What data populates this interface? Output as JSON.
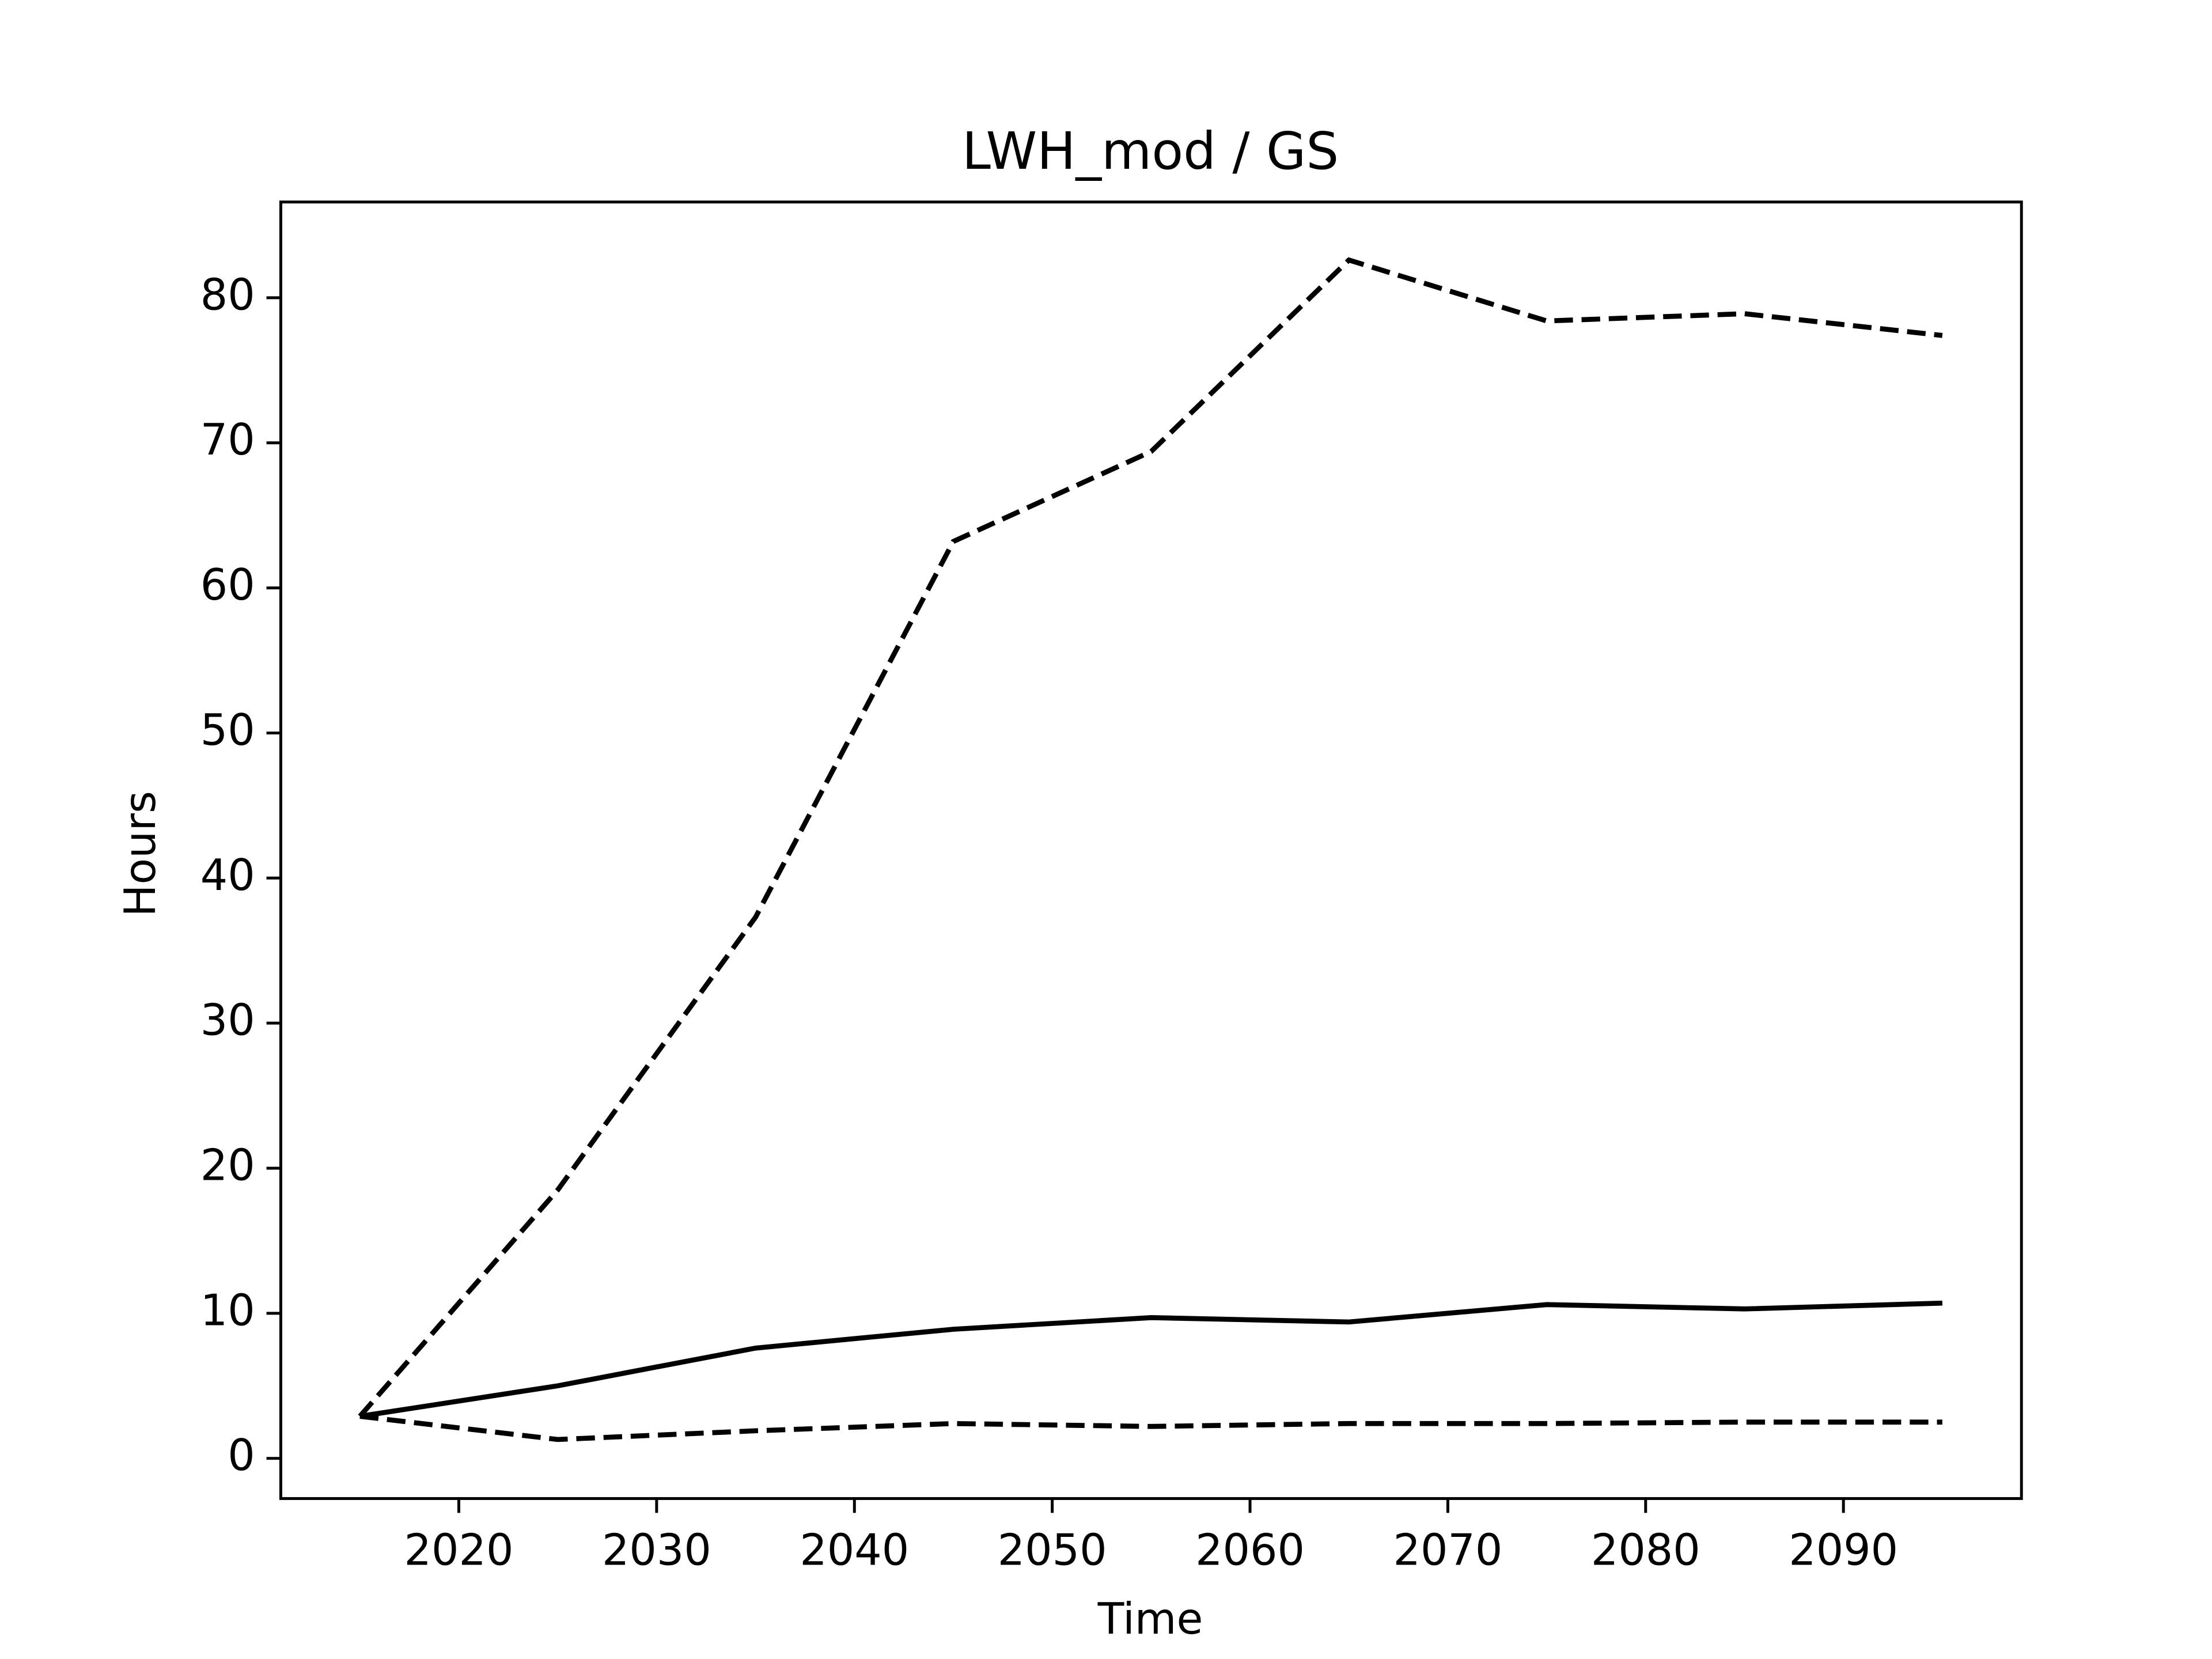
{
  "chart_data": {
    "type": "line",
    "title": "LWH_mod / GS",
    "x_label": "Time",
    "y_label": "Hours",
    "x": [
      2015,
      2025,
      2035,
      2045,
      2055,
      2065,
      2075,
      2085,
      2095
    ],
    "series": [
      {
        "color": "#000000",
        "linestyle": "dashed",
        "values": [
          2.9,
          18.5,
          37.3,
          63.2,
          69.4,
          82.6,
          78.4,
          78.9,
          77.4
        ]
      },
      {
        "color": "#000000",
        "linestyle": "solid",
        "values": [
          2.9,
          5.0,
          7.6,
          8.9,
          9.7,
          9.4,
          10.6,
          10.3,
          10.7
        ]
      },
      {
        "color": "#000000",
        "linestyle": "dashed",
        "values": [
          2.9,
          1.3,
          1.9,
          2.4,
          2.2,
          2.4,
          2.4,
          2.5,
          2.5
        ]
      }
    ],
    "xlim": [
      2011,
      2099
    ],
    "xticks": [
      2020,
      2030,
      2040,
      2050,
      2060,
      2070,
      2080,
      2090
    ],
    "ylim": [
      -2.77,
      86.6
    ],
    "yticks": [
      0,
      10,
      20,
      30,
      40,
      50,
      60,
      70,
      80
    ],
    "grid": false
  }
}
